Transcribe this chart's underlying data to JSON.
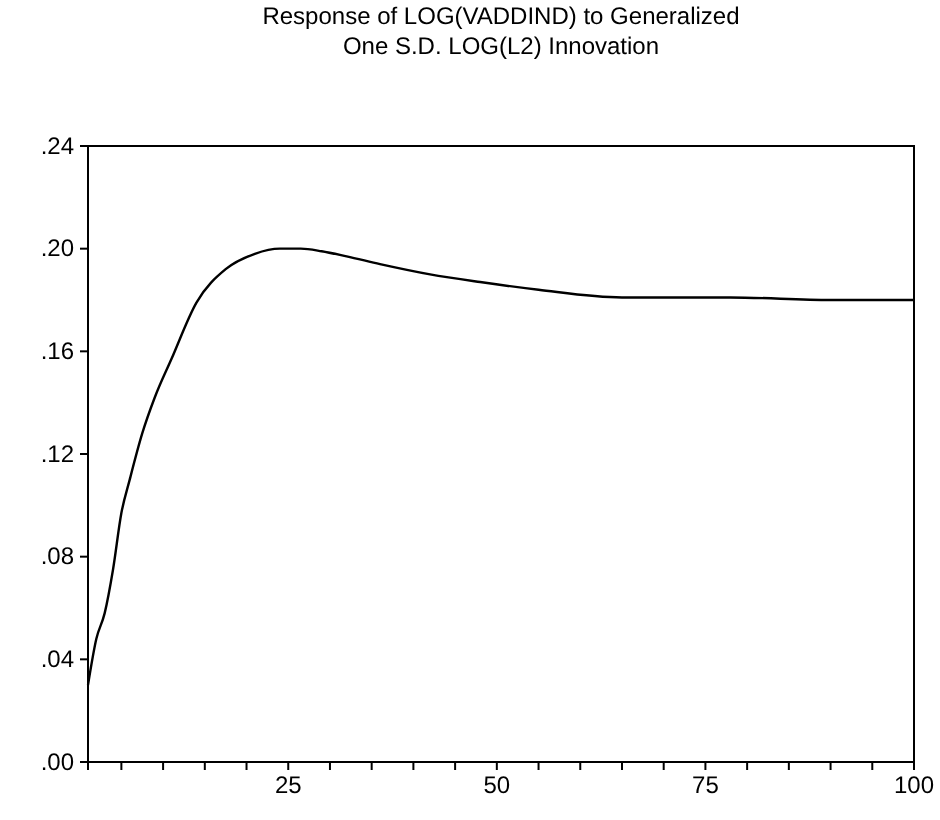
{
  "chart_data": {
    "type": "line",
    "title": "Response of LOG(VADDIND) to Generalized One S.D. LOG(L2) Innovation",
    "x": [
      1,
      2,
      3,
      4,
      5,
      6,
      7.5,
      9,
      11,
      14,
      17.5,
      21,
      24,
      26.5,
      29,
      32,
      36,
      42,
      48,
      55,
      65,
      78,
      90,
      100
    ],
    "series": [
      {
        "color": "#000000",
        "values": [
          0.03,
          0.048,
          0.058,
          0.075,
          0.097,
          0.11,
          0.128,
          0.142,
          0.157,
          0.179,
          0.192,
          0.198,
          0.2,
          0.2,
          0.199,
          0.197,
          0.194,
          0.19,
          0.187,
          0.184,
          0.181,
          0.181,
          0.18,
          0.18
        ]
      }
    ],
    "xlim": [
      1,
      100
    ],
    "xticks": [
      {
        "value": 5,
        "label": null
      },
      {
        "value": 10,
        "label": null
      },
      {
        "value": 15,
        "label": null
      },
      {
        "value": 20,
        "label": null
      },
      25,
      {
        "value": 30,
        "label": null
      },
      {
        "value": 35,
        "label": null
      },
      {
        "value": 40,
        "label": null
      },
      {
        "value": 45,
        "label": null
      },
      50,
      {
        "value": 55,
        "label": null
      },
      {
        "value": 60,
        "label": null
      },
      {
        "value": 65,
        "label": null
      },
      {
        "value": 70,
        "label": null
      },
      75,
      {
        "value": 80,
        "label": null
      },
      {
        "value": 85,
        "label": null
      },
      {
        "value": 90,
        "label": null
      },
      {
        "value": 95,
        "label": null
      },
      100
    ],
    "ylim": [
      0,
      0.24
    ],
    "yticks": [
      {
        "value": 0,
        "label": ".00"
      },
      {
        "value": 0.04,
        "label": ".04"
      },
      {
        "value": 0.08,
        "label": ".08"
      },
      {
        "value": 0.12,
        "label": ".12"
      },
      {
        "value": 0.16,
        "label": ".16"
      },
      {
        "value": 0.2,
        "label": ".20"
      },
      {
        "value": 0.24,
        "label": ".24"
      }
    ],
    "grid": false,
    "line_style": "solid",
    "marker": "none"
  }
}
